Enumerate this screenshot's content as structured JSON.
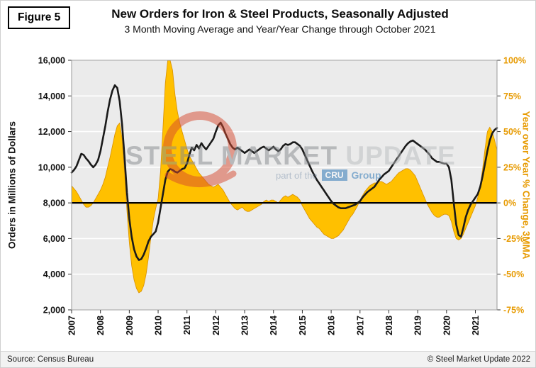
{
  "figure_label": "Figure 5",
  "title": "New Orders for Iron & Steel Products, Seasonally Adjusted",
  "subtitle": "3 Month Moving Average and Year/Year Change through October 2021",
  "watermark": {
    "word1": "STEEL ",
    "word2": "MARKET ",
    "word3": "UPDATE",
    "tagline_prefix": "part of the",
    "cru_badge": "CRU",
    "cru_suffix": "Group"
  },
  "footer": {
    "source": "Source: Census Bureau",
    "copyright": "© Steel Market Update 2022"
  },
  "colors": {
    "orders_line": "#1a1a1a",
    "yoy_fill": "#FFC000",
    "yoy_stroke": "#D89000",
    "right_axis_text": "#E79A00",
    "plot_background": "#ebebeb",
    "gridline": "#ffffff"
  },
  "chart_data": {
    "type": "line",
    "frequency": "monthly",
    "x_start": "2007-01",
    "x_end": "2021-10",
    "x_tick_labels": [
      "2007",
      "2008",
      "2009",
      "2010",
      "2011",
      "2012",
      "2013",
      "2014",
      "2015",
      "2016",
      "2017",
      "2018",
      "2019",
      "2020",
      "2021"
    ],
    "left_axis": {
      "label": "Orders in Millions of Dollars",
      "min": 2000,
      "max": 16000,
      "tick_step": 2000,
      "tick_labels": [
        "2,000",
        "4,000",
        "6,000",
        "8,000",
        "10,000",
        "12,000",
        "14,000",
        "16,000"
      ]
    },
    "right_axis": {
      "label": "Year over Year % Change, 3MMA",
      "min": -75,
      "max": 100,
      "tick_step": 25,
      "tick_labels": [
        "-75%",
        "-50%",
        "-25%",
        "0%",
        "25%",
        "50%",
        "75%",
        "100%"
      ]
    },
    "baseline_left_value": 8000,
    "baseline_right_value": 0,
    "grid": "horizontal-only",
    "series": [
      {
        "name": "New Orders, 3 Month Moving Average ($M)",
        "axis": "left",
        "style": "line",
        "color": "#1a1a1a",
        "values": [
          9700,
          9850,
          10050,
          10400,
          10750,
          10700,
          10500,
          10350,
          10150,
          10000,
          10150,
          10400,
          10900,
          11600,
          12300,
          13100,
          13800,
          14300,
          14600,
          14450,
          13700,
          12400,
          10600,
          8600,
          7100,
          6100,
          5400,
          5000,
          4800,
          4850,
          5100,
          5450,
          5850,
          6100,
          6250,
          6400,
          6900,
          7700,
          8500,
          9300,
          9750,
          9900,
          9850,
          9750,
          9700,
          9800,
          9900,
          9950,
          10200,
          10700,
          11100,
          10950,
          11250,
          11050,
          11350,
          11150,
          11000,
          11200,
          11400,
          11600,
          12000,
          12350,
          12500,
          12250,
          11900,
          11600,
          11300,
          11100,
          11000,
          11100,
          11000,
          10900,
          10800,
          10900,
          11000,
          10900,
          10800,
          10900,
          11000,
          11100,
          11150,
          11050,
          10950,
          11050,
          11150,
          11000,
          10900,
          11000,
          11200,
          11300,
          11250,
          11300,
          11400,
          11400,
          11300,
          11200,
          11000,
          10700,
          10400,
          10100,
          9800,
          9550,
          9300,
          9100,
          8900,
          8700,
          8500,
          8300,
          8100,
          7950,
          7850,
          7750,
          7700,
          7700,
          7700,
          7750,
          7800,
          7850,
          7900,
          8000,
          8100,
          8300,
          8450,
          8600,
          8700,
          8800,
          8900,
          9100,
          9300,
          9450,
          9600,
          9700,
          9800,
          10000,
          10200,
          10400,
          10600,
          10800,
          11000,
          11200,
          11350,
          11450,
          11500,
          11400,
          11300,
          11200,
          11100,
          11000,
          10850,
          10700,
          10500,
          10400,
          10300,
          10300,
          10250,
          10200,
          10200,
          10000,
          9300,
          8000,
          6800,
          6200,
          6100,
          6600,
          7200,
          7600,
          7900,
          8100,
          8300,
          8500,
          8900,
          9500,
          10200,
          10900,
          11500,
          11900,
          12100,
          12200
        ]
      },
      {
        "name": "Year over Year % Change, 3MMA",
        "axis": "right",
        "style": "area",
        "color": "#FFC000",
        "stroke": "#D89000",
        "values": [
          12,
          10,
          8,
          5,
          2,
          -1,
          -3,
          -3,
          -2,
          0,
          3,
          6,
          9,
          13,
          18,
          25,
          32,
          40,
          48,
          54,
          56,
          45,
          22,
          -5,
          -28,
          -44,
          -54,
          -60,
          -63,
          -62,
          -58,
          -50,
          -38,
          -24,
          -12,
          -4,
          3,
          22,
          52,
          84,
          100,
          100,
          93,
          76,
          64,
          56,
          50,
          44,
          38,
          33,
          30,
          27,
          24,
          21,
          19,
          17,
          15,
          13,
          12,
          11,
          12,
          13,
          11,
          9,
          6,
          3,
          0,
          -2,
          -4,
          -5,
          -4,
          -3,
          -5,
          -6,
          -6,
          -5,
          -4,
          -3,
          -2,
          -1,
          1,
          2,
          1,
          2,
          2,
          1,
          0,
          2,
          4,
          5,
          4,
          5,
          6,
          5,
          4,
          2,
          -2,
          -5,
          -8,
          -11,
          -13,
          -15,
          -17,
          -18,
          -20,
          -22,
          -23,
          -24,
          -25,
          -25,
          -24,
          -23,
          -21,
          -19,
          -16,
          -13,
          -10,
          -8,
          -5,
          -2,
          2,
          5,
          8,
          10,
          12,
          13,
          14,
          14,
          15,
          15,
          14,
          13,
          14,
          15,
          17,
          19,
          21,
          22,
          23,
          24,
          24,
          23,
          21,
          19,
          15,
          11,
          7,
          3,
          -1,
          -4,
          -7,
          -9,
          -10,
          -10,
          -9,
          -8,
          -8,
          -9,
          -13,
          -20,
          -25,
          -26,
          -25,
          -22,
          -18,
          -14,
          -10,
          -6,
          -2,
          4,
          12,
          24,
          38,
          50,
          53,
          50,
          44,
          37
        ]
      }
    ]
  }
}
